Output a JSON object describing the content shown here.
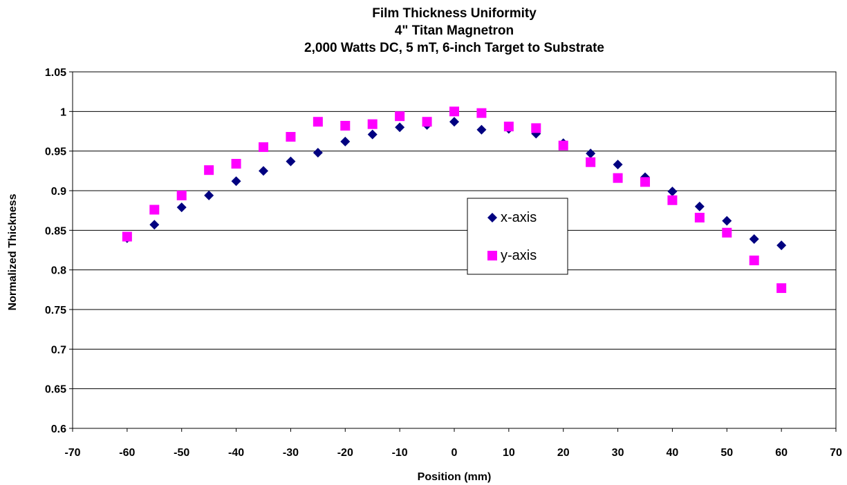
{
  "chart_data": {
    "type": "scatter",
    "title_lines": [
      "Film Thickness Uniformity",
      "4\" Titan Magnetron",
      "2,000 Watts DC, 5 mT, 6-inch Target to Substrate"
    ],
    "xlabel": "Position (mm)",
    "ylabel": "Normalized Thickness",
    "xlim": [
      -70,
      70
    ],
    "ylim": [
      0.6,
      1.05
    ],
    "x_ticks": [
      -70,
      -60,
      -50,
      -40,
      -30,
      -20,
      -10,
      0,
      10,
      20,
      30,
      40,
      50,
      60,
      70
    ],
    "x_tick_labels": [
      "-70",
      "-60",
      "-50",
      "-40",
      "-30",
      "-20",
      "-10",
      "0",
      "10",
      "20",
      "30",
      "40",
      "50",
      "60",
      "70"
    ],
    "y_ticks": [
      0.6,
      0.65,
      0.7,
      0.75,
      0.8,
      0.85,
      0.9,
      0.95,
      1.0,
      1.05
    ],
    "y_tick_labels": [
      "0.6",
      "0.65",
      "0.7",
      "0.75",
      "0.8",
      "0.85",
      "0.9",
      "0.95",
      "1",
      "1.05"
    ],
    "grid": "horizontal",
    "legend_position": "center-right",
    "x": [
      -60,
      -55,
      -50,
      -45,
      -40,
      -35,
      -30,
      -25,
      -20,
      -15,
      -10,
      -5,
      0,
      5,
      10,
      15,
      20,
      25,
      30,
      35,
      40,
      45,
      50,
      55,
      60
    ],
    "series": [
      {
        "name": "x-axis",
        "marker": "diamond",
        "color": "#000080",
        "values": [
          0.84,
          0.857,
          0.879,
          0.894,
          0.912,
          0.925,
          0.937,
          0.948,
          0.962,
          0.971,
          0.98,
          0.983,
          0.987,
          0.977,
          0.978,
          0.972,
          0.96,
          0.947,
          0.933,
          0.917,
          0.899,
          0.88,
          0.862,
          0.839,
          0.831
        ]
      },
      {
        "name": "y-axis",
        "marker": "square",
        "color": "#FF00FF",
        "values": [
          0.842,
          0.876,
          0.894,
          0.926,
          0.934,
          0.955,
          0.968,
          0.987,
          0.982,
          0.984,
          0.994,
          0.987,
          1.0,
          0.998,
          0.981,
          0.979,
          0.957,
          0.936,
          0.916,
          0.911,
          0.888,
          0.866,
          0.847,
          0.812,
          0.777
        ]
      }
    ]
  }
}
